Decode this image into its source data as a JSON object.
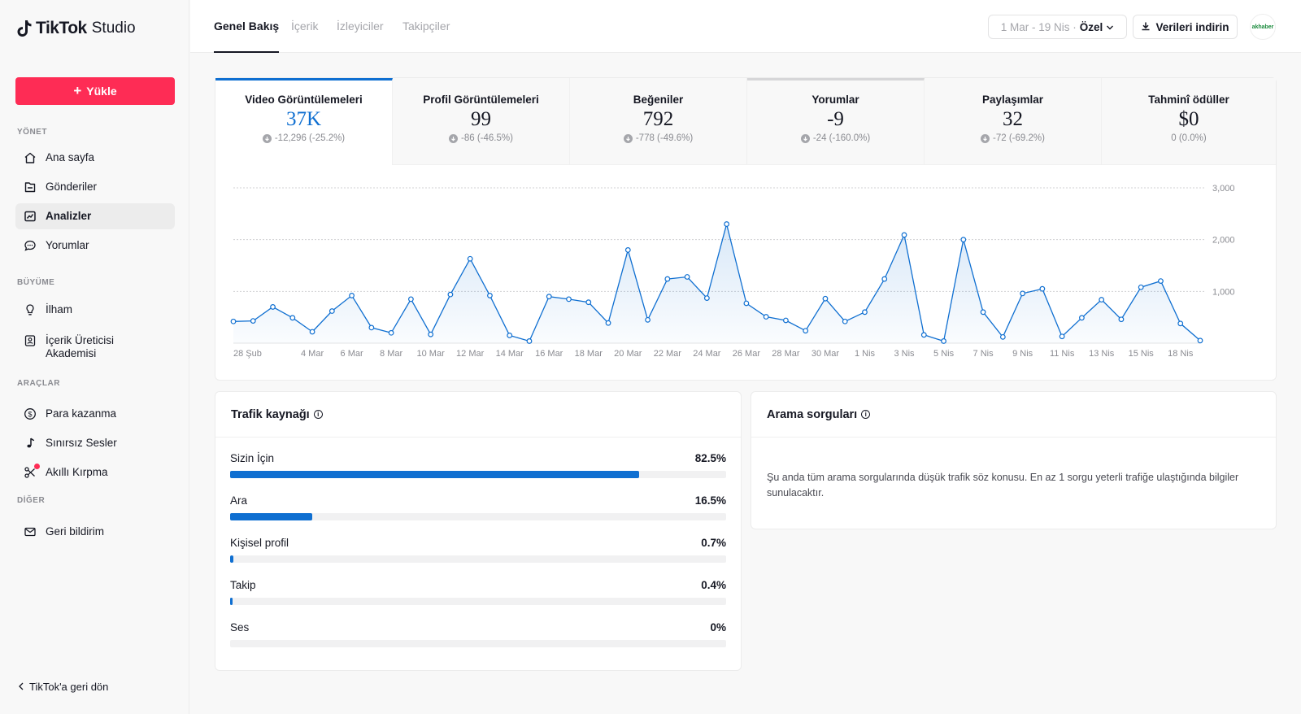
{
  "app": {
    "logo_text": "TikTok",
    "logo_sub": "Studio"
  },
  "sidebar": {
    "upload_label": "Yükle",
    "sections": {
      "manage": "YÖNET",
      "growth": "BÜYÜME",
      "tools": "ARAÇLAR",
      "other": "DİĞER"
    },
    "items": [
      {
        "label": "Ana sayfa",
        "icon": "home-icon"
      },
      {
        "label": "Gönderiler",
        "icon": "posts-icon"
      },
      {
        "label": "Analizler",
        "icon": "analytics-icon",
        "active": true
      },
      {
        "label": "Yorumlar",
        "icon": "comments-icon"
      },
      {
        "label": "İlham",
        "icon": "bulb-icon"
      },
      {
        "label": "İçerik Üreticisi Akademisi",
        "icon": "academy-icon"
      },
      {
        "label": "Para kazanma",
        "icon": "dollar-icon"
      },
      {
        "label": "Sınırsız Sesler",
        "icon": "music-note-icon"
      },
      {
        "label": "Akıllı Kırpma",
        "icon": "scissors-icon"
      },
      {
        "label": "Geri bildirim",
        "icon": "mail-icon"
      }
    ],
    "back_label": "TikTok'a geri dön"
  },
  "header": {
    "tabs": [
      "Genel Bakış",
      "İçerik",
      "İzleyiciler",
      "Takipçiler"
    ],
    "active_tab": 0,
    "date_range": "1 Mar - 19 Nis ·",
    "date_mode": "Özel",
    "download_label": "Verileri indirin",
    "avatar_text": "akhaber"
  },
  "metrics": [
    {
      "label": "Video Görüntülemeleri",
      "value": "37K",
      "change": "-12,296 (-25.2%)"
    },
    {
      "label": "Profil Görüntülemeleri",
      "value": "99",
      "change": "-86 (-46.5%)"
    },
    {
      "label": "Beğeniler",
      "value": "792",
      "change": "-778 (-49.6%)"
    },
    {
      "label": "Yorumlar",
      "value": "-9",
      "change": "-24 (-160.0%)"
    },
    {
      "label": "Paylaşımlar",
      "value": "32",
      "change": "-72 (-69.2%)"
    },
    {
      "label": "Tahminî ödüller",
      "value": "$0",
      "change": "0 (0.0%)"
    }
  ],
  "chart_data": {
    "type": "area",
    "ylim": [
      0,
      3000
    ],
    "yticks": [
      1000,
      2000,
      3000
    ],
    "ytick_labels": [
      "1,000",
      "2,000",
      "3,000"
    ],
    "xtick_labels": [
      "28 Şub",
      "4 Mar",
      "6 Mar",
      "8 Mar",
      "10 Mar",
      "12 Mar",
      "14 Mar",
      "16 Mar",
      "18 Mar",
      "20 Mar",
      "22 Mar",
      "24 Mar",
      "26 Mar",
      "28 Mar",
      "30 Mar",
      "1 Nis",
      "3 Nis",
      "5 Nis",
      "7 Nis",
      "9 Nis",
      "11 Nis",
      "13 Nis",
      "15 Nis",
      "18 Nis"
    ],
    "xtick_index": [
      0,
      4,
      6,
      8,
      10,
      12,
      14,
      16,
      18,
      20,
      22,
      24,
      26,
      28,
      30,
      32,
      34,
      36,
      38,
      40,
      42,
      44,
      46,
      48
    ],
    "values": [
      420,
      430,
      700,
      490,
      220,
      620,
      920,
      300,
      200,
      850,
      170,
      940,
      1630,
      920,
      150,
      40,
      900,
      850,
      790,
      390,
      1800,
      450,
      1240,
      1280,
      870,
      2300,
      770,
      510,
      440,
      240,
      860,
      420,
      600,
      1240,
      2090,
      160,
      40,
      2000,
      600,
      120,
      960,
      1050,
      130,
      490,
      840,
      460,
      1080,
      1200,
      380,
      50
    ],
    "color": "#0f6fd1"
  },
  "traffic": {
    "title": "Trafik kaynağı",
    "rows": [
      {
        "label": "Sizin İçin",
        "pct": "82.5%",
        "value": 82.5
      },
      {
        "label": "Ara",
        "pct": "16.5%",
        "value": 16.5
      },
      {
        "label": "Kişisel profil",
        "pct": "0.7%",
        "value": 0.7
      },
      {
        "label": "Takip",
        "pct": "0.4%",
        "value": 0.4
      },
      {
        "label": "Ses",
        "pct": "0%",
        "value": 0
      }
    ]
  },
  "search": {
    "title": "Arama sorguları",
    "message": "Şu anda tüm arama sorgularında düşük trafik söz konusu. En az 1 sorgu yeterli trafiğe ulaştığında bilgiler sunulacaktır."
  }
}
